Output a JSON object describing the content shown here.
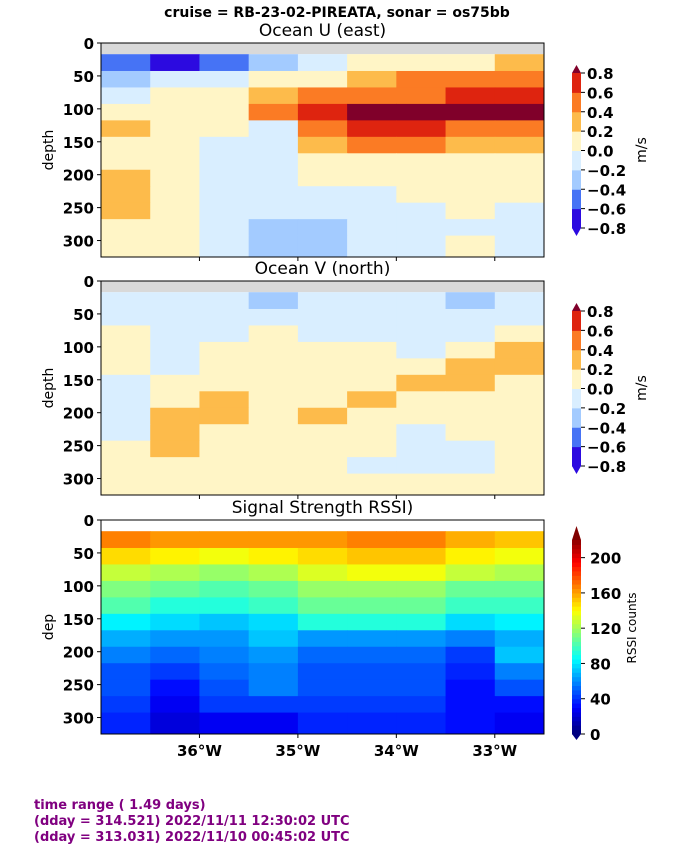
{
  "suptitle": "cruise = RB-23-02-PIREATA,  sonar = os75bb",
  "footer": {
    "line1": "time range ( 1.49 days)",
    "line2": "(dday = 314.521) 2022/11/11 12:30:02 UTC",
    "line3": "(dday = 313.031) 2022/11/10 00:45:02 UTC"
  },
  "colors": {
    "no_data": "#d9d9d9",
    "footer_text": "#800080",
    "velocity_levels": [
      "#2c0ae0",
      "#4673f5",
      "#a3cbff",
      "#d9eeff",
      "#fff5c6",
      "#fdbb4b",
      "#fb7b24",
      "#de240f",
      "#80002a"
    ]
  },
  "chart_data": [
    {
      "type": "heatmap",
      "title": "Ocean U (east)",
      "ylabel": "depth",
      "xlabel": "",
      "colorbar_label": "m/s",
      "colormap": "discrete diverging blue-white-red",
      "colorbar_ticks": [
        "0.8",
        "0.6",
        "0.4",
        "0.2",
        "0.0",
        "−0.2",
        "−0.4",
        "−0.6",
        "−0.8"
      ],
      "colorbar_levels": [
        -0.8,
        -0.6,
        -0.4,
        -0.2,
        0.0,
        0.2,
        0.4,
        0.6,
        0.8
      ],
      "yticks": [
        "0",
        "50",
        "100",
        "150",
        "200",
        "250",
        "300"
      ],
      "ytick_values": [
        0,
        50,
        100,
        150,
        200,
        250,
        300
      ],
      "ylim": [
        325,
        0
      ],
      "xlim": [
        -37.0,
        -32.5
      ],
      "no_data_above_depth": 17,
      "lon": [
        -36.75,
        -36.25,
        -35.75,
        -35.25,
        -34.75,
        -34.25,
        -33.75,
        -33.25,
        -32.75
      ],
      "depth": [
        30,
        55,
        80,
        105,
        130,
        155,
        180,
        205,
        230,
        255,
        280,
        305
      ],
      "z": [
        [
          -0.5,
          -0.7,
          -0.5,
          -0.3,
          -0.1,
          0.1,
          0.1,
          0.1,
          0.3
        ],
        [
          -0.3,
          -0.2,
          -0.1,
          0.1,
          0.1,
          0.3,
          0.4,
          0.5,
          0.5
        ],
        [
          -0.1,
          0.1,
          0.1,
          0.3,
          0.5,
          0.6,
          0.5,
          0.7,
          0.7
        ],
        [
          0.1,
          0.1,
          0.1,
          0.4,
          0.7,
          0.9,
          0.9,
          0.8,
          0.9
        ],
        [
          0.3,
          0.1,
          0.1,
          -0.1,
          0.5,
          0.7,
          0.7,
          0.6,
          0.6
        ],
        [
          0.1,
          0.1,
          -0.1,
          -0.1,
          0.3,
          0.5,
          0.4,
          0.3,
          0.3
        ],
        [
          0.1,
          0.1,
          -0.1,
          -0.1,
          0.1,
          0.1,
          0.1,
          0.1,
          0.1
        ],
        [
          0.3,
          0.1,
          -0.1,
          -0.1,
          0.1,
          0.1,
          0.1,
          0.1,
          0.1
        ],
        [
          0.3,
          0.1,
          -0.1,
          -0.1,
          -0.1,
          -0.1,
          0.1,
          0.1,
          0.1
        ],
        [
          0.3,
          0.1,
          -0.1,
          -0.1,
          -0.1,
          -0.1,
          -0.1,
          0.1,
          -0.1
        ],
        [
          0.1,
          0.1,
          -0.1,
          -0.3,
          -0.3,
          -0.1,
          -0.1,
          -0.1,
          -0.1
        ],
        [
          0.1,
          0.1,
          -0.1,
          -0.3,
          -0.3,
          -0.1,
          -0.1,
          0.1,
          -0.1
        ]
      ]
    },
    {
      "type": "heatmap",
      "title": "Ocean V (north)",
      "ylabel": "depth",
      "xlabel": "",
      "colorbar_label": "m/s",
      "colormap": "discrete diverging blue-white-red",
      "colorbar_ticks": [
        "0.8",
        "0.6",
        "0.4",
        "0.2",
        "0.0",
        "−0.2",
        "−0.4",
        "−0.6",
        "−0.8"
      ],
      "colorbar_levels": [
        -0.8,
        -0.6,
        -0.4,
        -0.2,
        0.0,
        0.2,
        0.4,
        0.6,
        0.8
      ],
      "yticks": [
        "0",
        "50",
        "100",
        "150",
        "200",
        "250",
        "300"
      ],
      "ytick_values": [
        0,
        50,
        100,
        150,
        200,
        250,
        300
      ],
      "ylim": [
        325,
        0
      ],
      "xlim": [
        -37.0,
        -32.5
      ],
      "no_data_above_depth": 17,
      "lon": [
        -36.75,
        -36.25,
        -35.75,
        -35.25,
        -34.75,
        -34.25,
        -33.75,
        -33.25,
        -32.75
      ],
      "depth": [
        30,
        55,
        80,
        105,
        130,
        155,
        180,
        205,
        230,
        255,
        280,
        305
      ],
      "z": [
        [
          -0.1,
          -0.1,
          -0.1,
          -0.3,
          -0.1,
          -0.1,
          -0.1,
          -0.3,
          -0.1
        ],
        [
          -0.1,
          -0.1,
          -0.1,
          -0.1,
          -0.1,
          -0.1,
          -0.1,
          -0.1,
          -0.1
        ],
        [
          0.1,
          -0.1,
          -0.1,
          0.1,
          -0.1,
          -0.1,
          -0.1,
          -0.1,
          0.1
        ],
        [
          0.1,
          -0.1,
          0.1,
          0.1,
          0.1,
          0.1,
          -0.1,
          0.1,
          0.3
        ],
        [
          0.1,
          -0.1,
          0.1,
          0.1,
          0.1,
          0.1,
          0.1,
          0.3,
          0.3
        ],
        [
          -0.1,
          0.1,
          0.1,
          0.1,
          0.1,
          0.1,
          0.3,
          0.3,
          0.1
        ],
        [
          -0.1,
          0.1,
          0.3,
          0.1,
          0.1,
          0.3,
          0.1,
          0.1,
          0.1
        ],
        [
          -0.1,
          0.3,
          0.3,
          0.1,
          0.3,
          0.1,
          0.1,
          0.1,
          0.1
        ],
        [
          -0.1,
          0.3,
          0.1,
          0.1,
          0.1,
          0.1,
          -0.1,
          0.1,
          0.1
        ],
        [
          0.1,
          0.3,
          0.1,
          0.1,
          0.1,
          0.1,
          -0.1,
          -0.1,
          0.1
        ],
        [
          0.1,
          0.1,
          0.1,
          0.1,
          0.1,
          -0.1,
          -0.1,
          -0.1,
          0.1
        ],
        [
          0.1,
          0.1,
          0.1,
          0.1,
          0.1,
          0.1,
          0.1,
          0.1,
          0.1
        ]
      ]
    },
    {
      "type": "heatmap",
      "title": "Signal Strength RSSI)",
      "ylabel": "dep",
      "xlabel": "",
      "colorbar_label": "RSSI counts",
      "colormap": "jet",
      "colorbar_range": [
        0,
        220
      ],
      "colorbar_ticks": [
        "200",
        "160",
        "120",
        "80",
        "40",
        "0"
      ],
      "colorbar_tick_values": [
        200,
        160,
        120,
        80,
        40,
        0
      ],
      "yticks": [
        "0",
        "50",
        "100",
        "150",
        "200",
        "250",
        "300"
      ],
      "ytick_values": [
        0,
        50,
        100,
        150,
        200,
        250,
        300
      ],
      "xticks": [
        "36°W",
        "35°W",
        "34°W",
        "33°W"
      ],
      "xtick_values": [
        -36,
        -35,
        -34,
        -33
      ],
      "ylim": [
        325,
        0
      ],
      "xlim": [
        -37.0,
        -32.5
      ],
      "no_data_above_depth": 17,
      "lon": [
        -36.75,
        -36.25,
        -35.75,
        -35.25,
        -34.75,
        -34.25,
        -33.75,
        -33.25,
        -32.75
      ],
      "depth": [
        30,
        55,
        80,
        105,
        130,
        155,
        180,
        205,
        230,
        255,
        280,
        305
      ],
      "z": [
        [
          165,
          160,
          160,
          160,
          160,
          165,
          165,
          155,
          150
        ],
        [
          145,
          140,
          135,
          140,
          145,
          150,
          150,
          140,
          135
        ],
        [
          125,
          120,
          115,
          120,
          130,
          135,
          135,
          125,
          120
        ],
        [
          110,
          105,
          100,
          105,
          115,
          115,
          115,
          105,
          105
        ],
        [
          100,
          90,
          90,
          95,
          105,
          105,
          105,
          95,
          95
        ],
        [
          80,
          75,
          70,
          75,
          90,
          90,
          90,
          75,
          80
        ],
        [
          65,
          60,
          60,
          70,
          60,
          60,
          60,
          55,
          65
        ],
        [
          55,
          50,
          55,
          60,
          50,
          50,
          50,
          40,
          70
        ],
        [
          45,
          40,
          50,
          55,
          45,
          45,
          45,
          35,
          55
        ],
        [
          45,
          30,
          45,
          55,
          45,
          45,
          45,
          30,
          45
        ],
        [
          40,
          25,
          40,
          40,
          40,
          40,
          40,
          30,
          30
        ],
        [
          35,
          20,
          25,
          25,
          35,
          35,
          35,
          30,
          25
        ]
      ]
    }
  ]
}
